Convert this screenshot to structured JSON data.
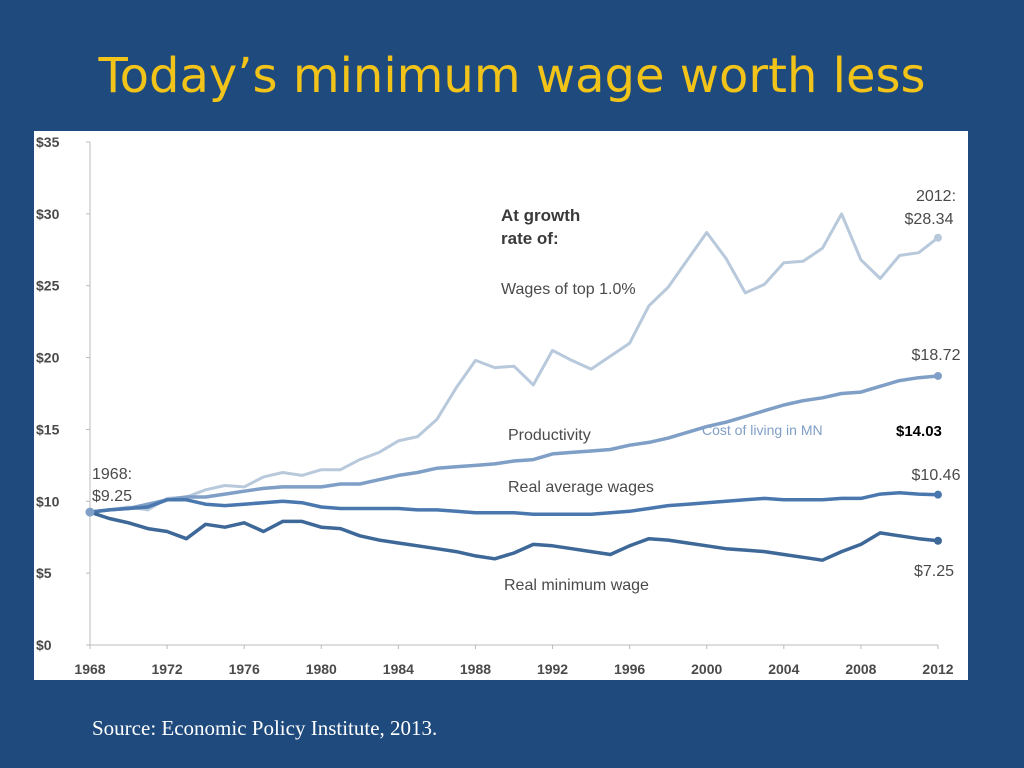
{
  "slide": {
    "title": "Today’s minimum wage worth less",
    "source": "Source: Economic Policy Institute, 2013."
  },
  "colors": {
    "background": "#1f4a7d",
    "title": "#f2c318",
    "top1": "#b8c9dc",
    "productivity": "#7f9fc6",
    "avg_wage": "#4a78ae",
    "min_wage": "#3d6898",
    "axis_text": "#4a4a4a"
  },
  "chart_data": {
    "type": "line",
    "title": "",
    "xlabel": "",
    "ylabel": "",
    "xlim": [
      1968,
      2012
    ],
    "ylim": [
      0,
      35
    ],
    "y_ticks": [
      0,
      5,
      10,
      15,
      20,
      25,
      30,
      35
    ],
    "y_tick_labels": [
      "$0",
      "$5",
      "$10",
      "$15",
      "$20",
      "$25",
      "$30",
      "$35"
    ],
    "x_ticks": [
      1968,
      1972,
      1976,
      1980,
      1984,
      1988,
      1992,
      1996,
      2000,
      2004,
      2008,
      2012
    ],
    "x_tick_labels": [
      "1968",
      "1972",
      "1976",
      "1980",
      "1984",
      "1988",
      "1992",
      "1996",
      "2000",
      "2004",
      "2008",
      "2012"
    ],
    "grid": false,
    "x": [
      1968,
      1969,
      1970,
      1971,
      1972,
      1973,
      1974,
      1975,
      1976,
      1977,
      1978,
      1979,
      1980,
      1981,
      1982,
      1983,
      1984,
      1985,
      1986,
      1987,
      1988,
      1989,
      1990,
      1991,
      1992,
      1993,
      1994,
      1995,
      1996,
      1997,
      1998,
      1999,
      2000,
      2001,
      2002,
      2003,
      2004,
      2005,
      2006,
      2007,
      2008,
      2009,
      2010,
      2011,
      2012
    ],
    "series": [
      {
        "name": "Wages of top 1.0%",
        "color_key": "top1",
        "values": [
          9.25,
          9.4,
          9.6,
          9.4,
          10.2,
          10.3,
          10.8,
          11.1,
          11.0,
          11.7,
          12.0,
          11.8,
          12.2,
          12.2,
          12.9,
          13.4,
          14.2,
          14.5,
          15.7,
          17.9,
          19.8,
          19.3,
          19.4,
          18.1,
          20.5,
          19.8,
          19.2,
          20.1,
          21.0,
          23.6,
          24.9,
          26.8,
          28.7,
          26.9,
          24.5,
          25.1,
          26.6,
          26.7,
          27.6,
          30.0,
          26.8,
          25.5,
          27.1,
          27.3,
          28.34
        ]
      },
      {
        "name": "Productivity",
        "color_key": "productivity",
        "values": [
          9.25,
          9.4,
          9.5,
          9.8,
          10.1,
          10.3,
          10.3,
          10.5,
          10.7,
          10.9,
          11.0,
          11.0,
          11.0,
          11.2,
          11.2,
          11.5,
          11.8,
          12.0,
          12.3,
          12.4,
          12.5,
          12.6,
          12.8,
          12.9,
          13.3,
          13.4,
          13.5,
          13.6,
          13.9,
          14.1,
          14.4,
          14.8,
          15.2,
          15.5,
          15.9,
          16.3,
          16.7,
          17.0,
          17.2,
          17.5,
          17.6,
          18.0,
          18.4,
          18.6,
          18.72
        ]
      },
      {
        "name": "Real average wages",
        "color_key": "avg_wage",
        "values": [
          9.25,
          9.4,
          9.5,
          9.6,
          10.1,
          10.1,
          9.8,
          9.7,
          9.8,
          9.9,
          10.0,
          9.9,
          9.6,
          9.5,
          9.5,
          9.5,
          9.5,
          9.4,
          9.4,
          9.3,
          9.2,
          9.2,
          9.2,
          9.1,
          9.1,
          9.1,
          9.1,
          9.2,
          9.3,
          9.5,
          9.7,
          9.8,
          9.9,
          10.0,
          10.1,
          10.2,
          10.1,
          10.1,
          10.1,
          10.2,
          10.2,
          10.5,
          10.6,
          10.5,
          10.46
        ]
      },
      {
        "name": "Real minimum wage",
        "color_key": "min_wage",
        "values": [
          9.25,
          8.8,
          8.5,
          8.1,
          7.9,
          7.4,
          8.4,
          8.2,
          8.5,
          7.9,
          8.6,
          8.6,
          8.2,
          8.1,
          7.6,
          7.3,
          7.1,
          6.9,
          6.7,
          6.5,
          6.2,
          6.0,
          6.4,
          7.0,
          6.9,
          6.7,
          6.5,
          6.3,
          6.9,
          7.4,
          7.3,
          7.1,
          6.9,
          6.7,
          6.6,
          6.5,
          6.3,
          6.1,
          5.9,
          6.5,
          7.0,
          7.8,
          7.6,
          7.4,
          7.25
        ]
      }
    ],
    "annotations": {
      "start_label_line1": "1968:",
      "start_label_line2": "$9.25",
      "top_end_line1": "2012:",
      "top_end_line2": "$28.34",
      "heading_line1": "At growth",
      "heading_line2": "rate of:",
      "series_top1": "Wages of top 1.0%",
      "series_productivity": "Productivity",
      "series_avg": "Real average wages",
      "series_min": "Real minimum wage",
      "end_productivity": "$18.72",
      "end_avg": "$10.46",
      "end_min": "$7.25",
      "cost_label": "Cost of living in MN",
      "cost_value": "$14.03"
    }
  }
}
